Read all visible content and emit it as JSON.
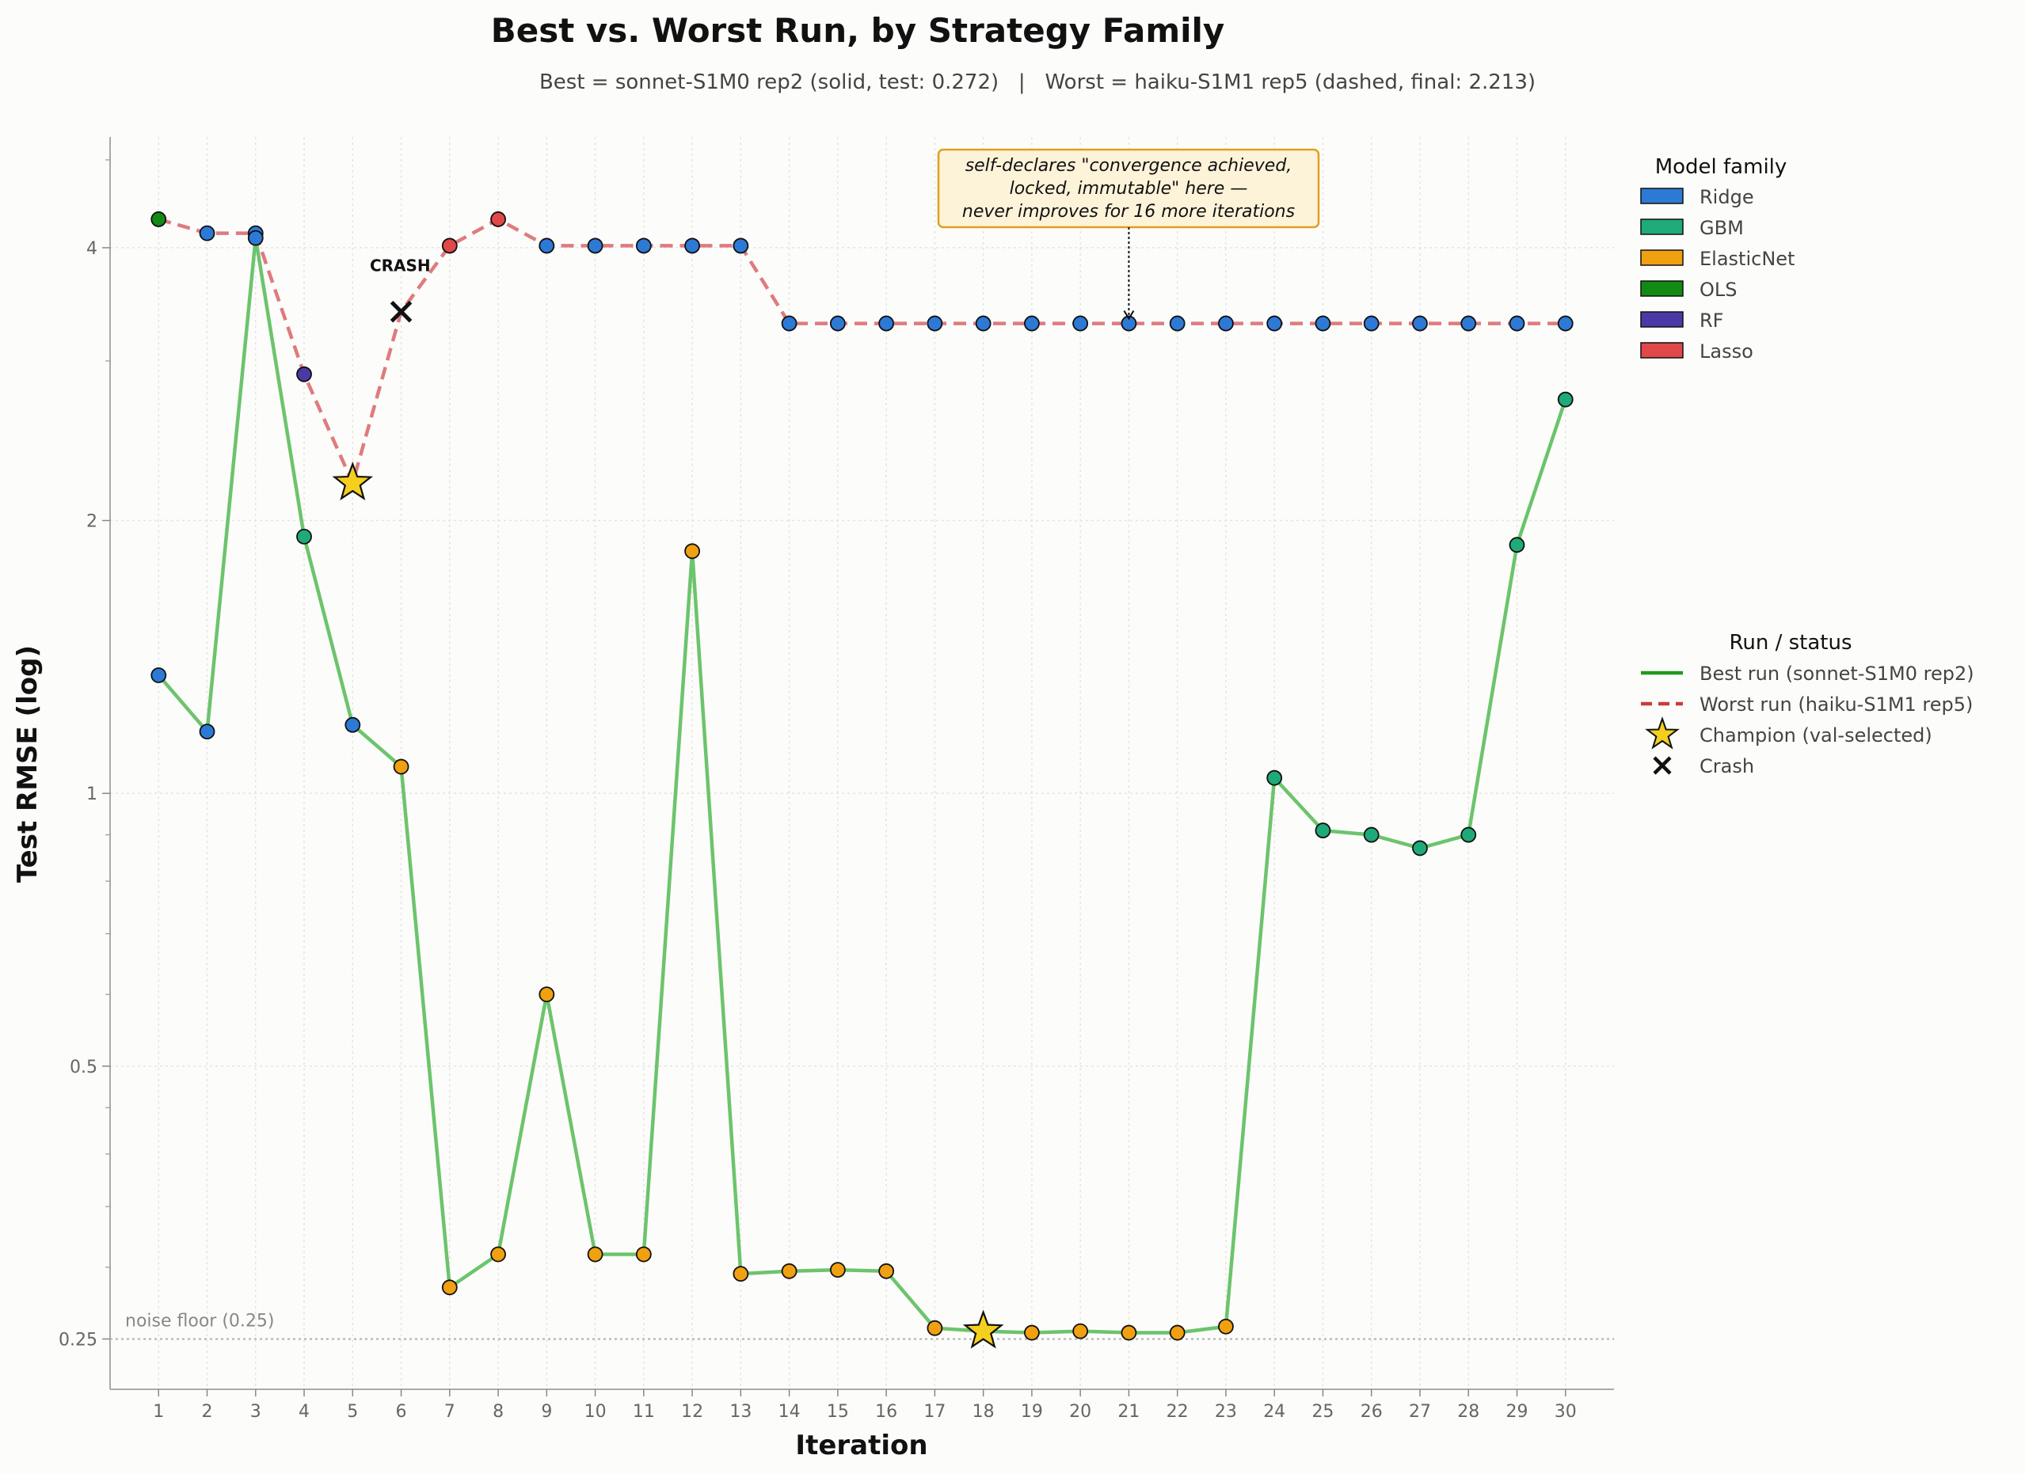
{
  "chart_data": {
    "type": "line",
    "title": "Best vs. Worst Run, by Strategy Family",
    "subtitle": "Best = sonnet-S1M0 rep2 (solid, test: 0.272)   |   Worst = haiku-S1M1 rep5 (dashed, final: 2.213)",
    "xlabel": "Iteration",
    "ylabel": "Test RMSE (log)",
    "yscale": "log",
    "ylim": [
      0.22,
      5.3
    ],
    "xlim": [
      0,
      31
    ],
    "x": [
      1,
      2,
      3,
      4,
      5,
      6,
      7,
      8,
      9,
      10,
      11,
      12,
      13,
      14,
      15,
      16,
      17,
      18,
      19,
      20,
      21,
      22,
      23,
      24,
      25,
      26,
      27,
      28,
      29,
      30
    ],
    "yticks": [
      0.25,
      0.5,
      1,
      2,
      4
    ],
    "ytick_labels": [
      "0.25",
      "0.5",
      "1",
      "2",
      "4"
    ],
    "grid": true,
    "colors": {
      "Ridge": "#2d7ad6",
      "GBM": "#1faa7a",
      "ElasticNet": "#f0a010",
      "OLS": "#138a13",
      "RF": "#4b3aa6",
      "Lasso": "#e0484a"
    },
    "series": [
      {
        "name": "Best run (sonnet-S1M0 rep2)",
        "style": "solid",
        "line_color": "#6cc46c",
        "values": [
          1.35,
          1.17,
          4.1,
          1.92,
          1.19,
          1.07,
          0.285,
          0.31,
          0.6,
          0.31,
          0.31,
          1.85,
          0.295,
          0.297,
          0.298,
          0.297,
          0.257,
          0.255,
          0.254,
          0.255,
          0.254,
          0.254,
          0.258,
          1.04,
          0.91,
          0.9,
          0.87,
          0.9,
          1.88,
          2.72
        ],
        "families": [
          "Ridge",
          "Ridge",
          "Ridge",
          "GBM",
          "Ridge",
          "ElasticNet",
          "ElasticNet",
          "ElasticNet",
          "ElasticNet",
          "ElasticNet",
          "ElasticNet",
          "ElasticNet",
          "ElasticNet",
          "ElasticNet",
          "ElasticNet",
          "ElasticNet",
          "ElasticNet",
          "ElasticNet",
          "ElasticNet",
          "ElasticNet",
          "ElasticNet",
          "ElasticNet",
          "ElasticNet",
          "GBM",
          "GBM",
          "GBM",
          "GBM",
          "GBM",
          "GBM",
          "GBM"
        ]
      },
      {
        "name": "Worst run (haiku-S1M1 rep5)",
        "style": "dashed",
        "line_color": "#de7b7e",
        "values": [
          4.3,
          4.15,
          4.15,
          2.9,
          null,
          null,
          4.02,
          4.3,
          4.02,
          4.02,
          4.02,
          4.02,
          4.02,
          3.3,
          3.3,
          3.3,
          3.3,
          3.3,
          3.3,
          3.3,
          3.3,
          3.3,
          3.3,
          3.3,
          3.3,
          3.3,
          3.3,
          3.3,
          3.3,
          3.3
        ],
        "families": [
          "OLS",
          "Ridge",
          "Ridge",
          "RF",
          null,
          null,
          "Lasso",
          "Lasso",
          "Ridge",
          "Ridge",
          "Ridge",
          "Ridge",
          "Ridge",
          "Ridge",
          "Ridge",
          "Ridge",
          "Ridge",
          "Ridge",
          "Ridge",
          "Ridge",
          "Ridge",
          "Ridge",
          "Ridge",
          "Ridge",
          "Ridge",
          "Ridge",
          "Ridge",
          "Ridge",
          "Ridge",
          "Ridge"
        ]
      }
    ],
    "champions": [
      {
        "x": 5,
        "y": 2.2,
        "run": "worst"
      },
      {
        "x": 18,
        "y": 0.255,
        "run": "best"
      }
    ],
    "crashes": [
      {
        "x": 6,
        "y": 3.4,
        "label": "CRASH"
      }
    ],
    "noise_floor": {
      "y": 0.25,
      "label": "noise floor (0.25)"
    },
    "annotation": {
      "x": 21,
      "y": 3.3,
      "lines": [
        "self-declares \"convergence achieved,",
        "locked, immutable\" here —",
        "never improves for 16 more iterations"
      ]
    },
    "legend_family": {
      "title": "Model family",
      "placement": "right-top",
      "items": [
        "Ridge",
        "GBM",
        "ElasticNet",
        "OLS",
        "RF",
        "Lasso"
      ]
    },
    "legend_status": {
      "title": "Run / status",
      "placement": "right-middle",
      "items": [
        "Best run (sonnet-S1M0 rep2)",
        "Worst run (haiku-S1M1 rep5)",
        "Champion (val-selected)",
        "Crash"
      ]
    }
  }
}
